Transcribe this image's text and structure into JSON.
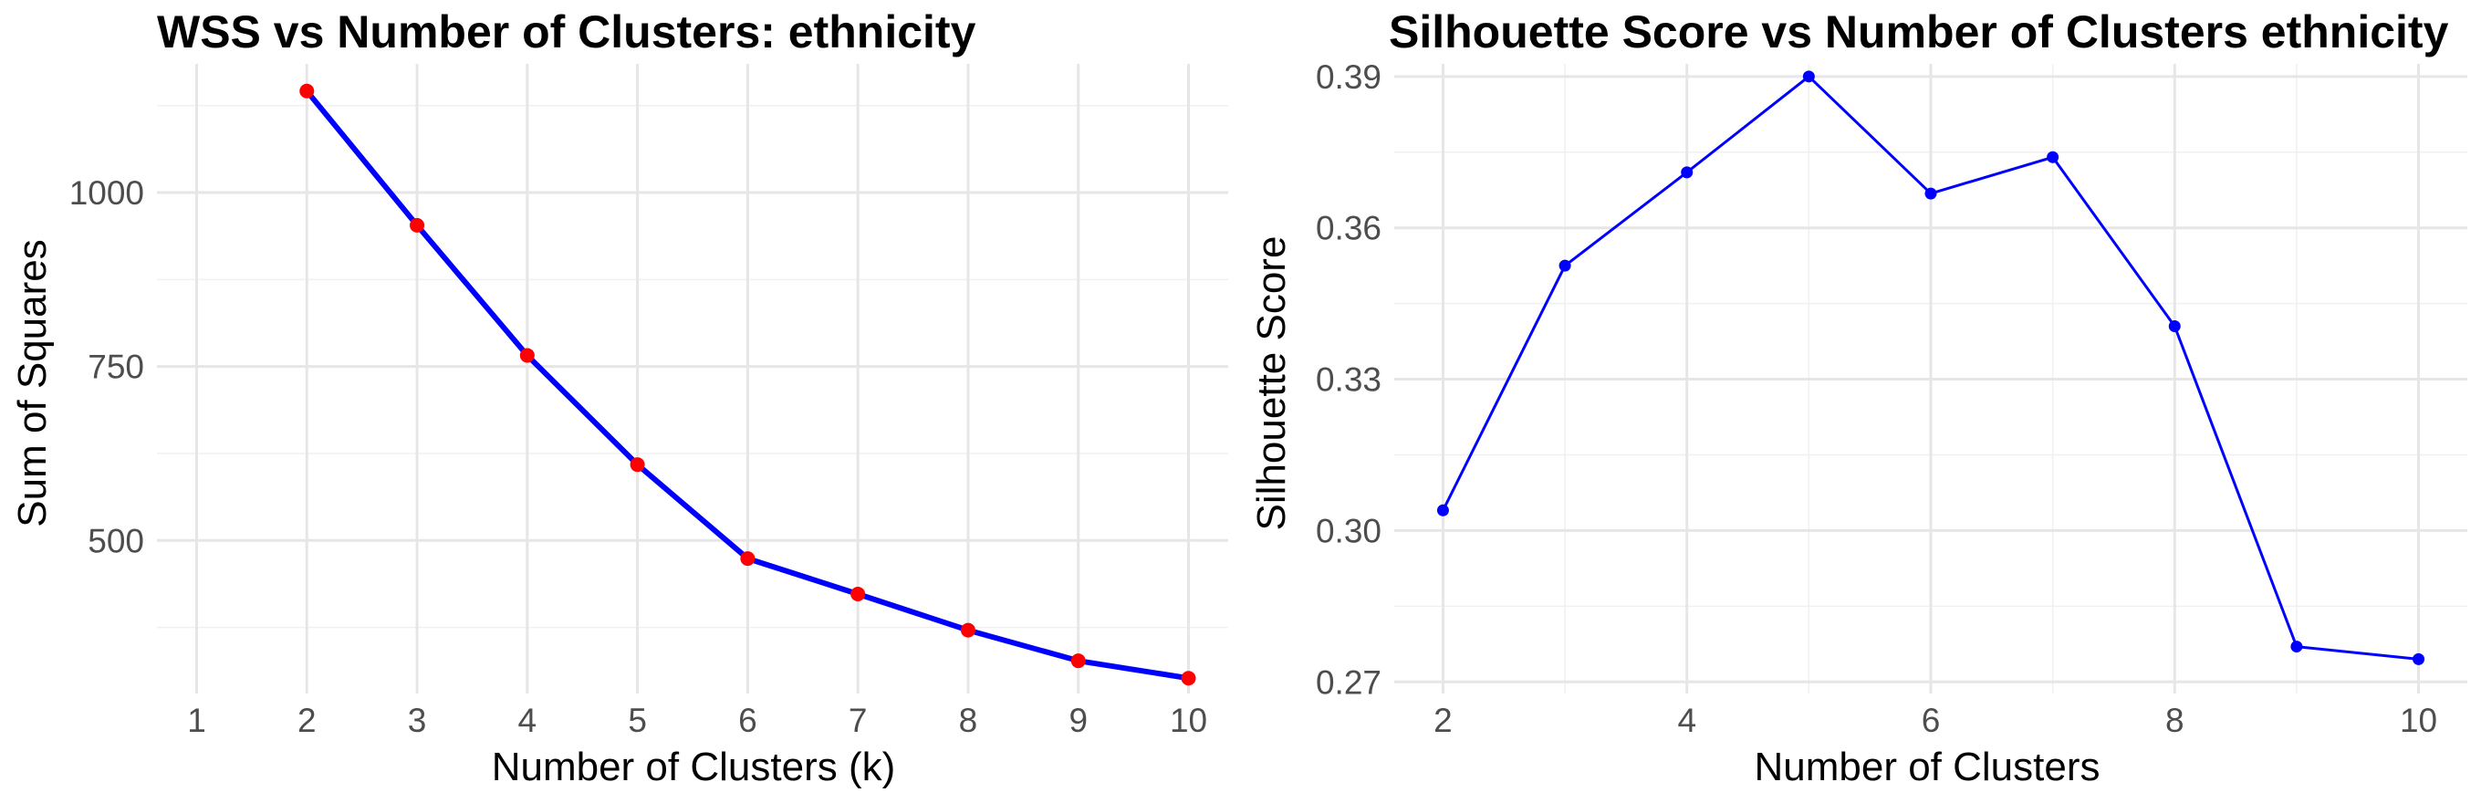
{
  "chart_data": [
    {
      "type": "line",
      "title": "WSS vs Number of Clusters:  ethnicity",
      "xlabel": "Number of Clusters (k)",
      "ylabel": "Sum of Squares",
      "xlim": [
        0.64,
        10.36
      ],
      "ylim": [
        280,
        1185
      ],
      "x_ticks": [
        1,
        2,
        3,
        4,
        5,
        6,
        7,
        8,
        9,
        10
      ],
      "y_ticks": [
        500,
        750,
        1000
      ],
      "y_minor": [
        375,
        625,
        875,
        1125
      ],
      "grid": true,
      "line_color": "#0000ff",
      "point_color": "#ff0000",
      "series": [
        {
          "x": [
            2,
            3,
            4,
            5,
            6,
            7,
            8,
            9,
            10
          ],
          "values": [
            1146,
            953,
            766,
            609,
            474,
            423,
            371,
            327,
            302
          ]
        }
      ]
    },
    {
      "type": "line",
      "title": "Silhouette Score vs Number of Clusters ethnicity",
      "xlabel": "Number of Clusters",
      "ylabel": "Silhouette Score",
      "xlim": [
        1.6,
        10.4
      ],
      "ylim": [
        0.2677,
        0.3925
      ],
      "x_ticks": [
        2,
        4,
        6,
        8,
        10
      ],
      "x_minor": [
        3,
        5,
        7,
        9
      ],
      "y_ticks": [
        0.27,
        0.3,
        0.33,
        0.36,
        0.39
      ],
      "y_tick_labels": [
        "0.27",
        "0.30",
        "0.33",
        "0.36",
        "0.39"
      ],
      "y_minor": [
        0.285,
        0.315,
        0.345,
        0.375
      ],
      "grid": true,
      "line_color": "#0000ff",
      "point_color": "#0000ff",
      "series": [
        {
          "x": [
            2,
            3,
            4,
            5,
            6,
            7,
            8,
            9,
            10
          ],
          "values": [
            0.304,
            0.3525,
            0.371,
            0.39,
            0.3668,
            0.374,
            0.3405,
            0.277,
            0.2745
          ]
        }
      ]
    }
  ]
}
